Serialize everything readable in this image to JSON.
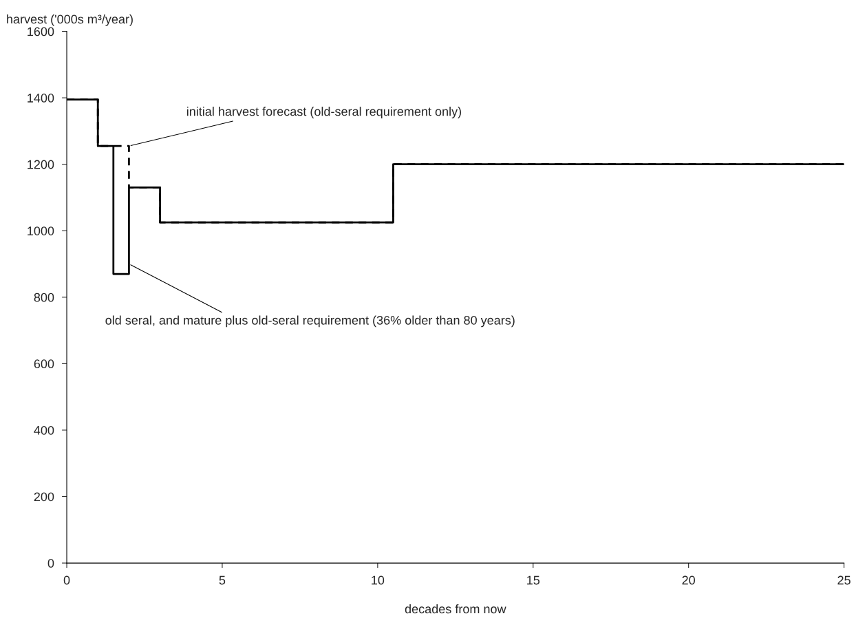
{
  "chart_data": {
    "type": "step",
    "xlabel": "decades from now",
    "ylabel": "harvest ('000s m³/year)",
    "xlim": [
      0,
      25
    ],
    "xticks": [
      0,
      5,
      10,
      15,
      20,
      25
    ],
    "ylim": [
      0,
      1600
    ],
    "yticks": [
      0,
      200,
      400,
      600,
      800,
      1000,
      1200,
      1400,
      1600
    ],
    "grid": false,
    "legend": false,
    "series": [
      {
        "color": "#000000",
        "line_style": "solid",
        "x": [
          0,
          1,
          1.5,
          2,
          3,
          10.5,
          25
        ],
        "values": [
          1395,
          1255,
          870,
          1130,
          1025,
          1200,
          1200
        ]
      },
      {
        "color": "#000000",
        "line_style": "dashed",
        "x": [
          0,
          1,
          2,
          3,
          10.5,
          25
        ],
        "values": [
          1395,
          1255,
          1130,
          1025,
          1200,
          1200
        ]
      }
    ],
    "annotations": [
      {
        "text": "initial harvest forecast (old-seral requirement only)",
        "x": 2,
        "y": 1255
      },
      {
        "text": "old seral, and mature plus old-seral requirement (36% older than 80 years)",
        "x": 2,
        "y": 900
      }
    ]
  }
}
